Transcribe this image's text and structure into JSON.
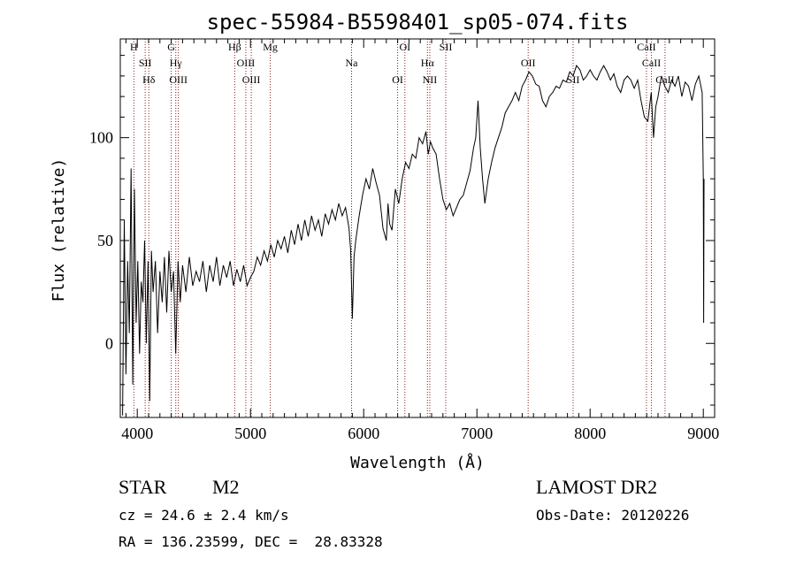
{
  "chart_data": {
    "type": "line",
    "title": "spec-55984-B5598401_sp05-074.fits",
    "xlabel": "Wavelength (Å)",
    "ylabel": "Flux (relative)",
    "xlim": [
      3850,
      9100
    ],
    "ylim": [
      -36,
      148
    ],
    "xticks": [
      4000,
      5000,
      6000,
      7000,
      8000,
      9000
    ],
    "yticks": [
      0,
      50,
      100
    ],
    "grid": false,
    "line_color": "#000000",
    "marker_color": "#8b1a1a",
    "series": [
      {
        "x": [
          3870,
          3885,
          3900,
          3915,
          3930,
          3945,
          3960,
          3975,
          3990,
          4005,
          4020,
          4035,
          4050,
          4065,
          4080,
          4095,
          4110,
          4125,
          4140,
          4160,
          4180,
          4200,
          4220,
          4240,
          4260,
          4280,
          4300,
          4320,
          4340,
          4360,
          4380,
          4400,
          4430,
          4460,
          4490,
          4520,
          4550,
          4580,
          4610,
          4640,
          4670,
          4700,
          4730,
          4760,
          4790,
          4820,
          4850,
          4880,
          4910,
          4940,
          4970,
          5000,
          5030,
          5060,
          5090,
          5120,
          5150,
          5180,
          5210,
          5240,
          5270,
          5300,
          5330,
          5360,
          5390,
          5420,
          5450,
          5480,
          5510,
          5540,
          5570,
          5600,
          5630,
          5660,
          5690,
          5720,
          5750,
          5780,
          5810,
          5840,
          5870,
          5885,
          5900,
          5915,
          5930,
          5960,
          5990,
          6020,
          6050,
          6080,
          6110,
          6140,
          6170,
          6200,
          6215,
          6230,
          6250,
          6280,
          6310,
          6340,
          6370,
          6400,
          6430,
          6460,
          6490,
          6520,
          6550,
          6570,
          6590,
          6610,
          6640,
          6670,
          6700,
          6730,
          6760,
          6790,
          6820,
          6850,
          6880,
          6910,
          6940,
          6970,
          6990,
          7010,
          7030,
          7050,
          7070,
          7100,
          7130,
          7160,
          7190,
          7220,
          7250,
          7280,
          7310,
          7340,
          7370,
          7400,
          7430,
          7460,
          7490,
          7520,
          7550,
          7580,
          7610,
          7640,
          7670,
          7700,
          7730,
          7760,
          7790,
          7820,
          7850,
          7880,
          7910,
          7940,
          7970,
          8000,
          8030,
          8060,
          8090,
          8120,
          8150,
          8180,
          8210,
          8240,
          8270,
          8300,
          8330,
          8360,
          8390,
          8420,
          8450,
          8480,
          8510,
          8540,
          8560,
          8580,
          8600,
          8630,
          8660,
          8690,
          8720,
          8750,
          8780,
          8810,
          8840,
          8870,
          8900,
          8930,
          8960,
          8990,
          9000,
          9003,
          9006
        ],
        "y": [
          -35,
          60,
          -15,
          40,
          5,
          85,
          -20,
          75,
          10,
          40,
          -5,
          30,
          20,
          50,
          0,
          40,
          -28,
          45,
          25,
          40,
          5,
          35,
          20,
          42,
          15,
          45,
          25,
          35,
          -5,
          40,
          20,
          38,
          25,
          42,
          28,
          35,
          30,
          40,
          25,
          38,
          30,
          42,
          28,
          38,
          32,
          40,
          28,
          36,
          30,
          38,
          28,
          32,
          35,
          42,
          38,
          45,
          40,
          48,
          42,
          50,
          46,
          52,
          44,
          55,
          48,
          58,
          50,
          60,
          52,
          62,
          55,
          60,
          52,
          63,
          58,
          65,
          60,
          68,
          62,
          66,
          56,
          45,
          12,
          42,
          50,
          62,
          72,
          80,
          75,
          85,
          78,
          72,
          56,
          50,
          68,
          58,
          55,
          75,
          68,
          80,
          88,
          85,
          92,
          90,
          100,
          97,
          103,
          92,
          98,
          95,
          92,
          80,
          70,
          65,
          68,
          62,
          66,
          70,
          72,
          78,
          84,
          95,
          100,
          118,
          95,
          80,
          68,
          80,
          88,
          95,
          100,
          105,
          112,
          115,
          118,
          122,
          118,
          125,
          128,
          132,
          130,
          126,
          125,
          118,
          115,
          120,
          122,
          125,
          124,
          128,
          127,
          132,
          130,
          135,
          133,
          128,
          130,
          133,
          130,
          128,
          132,
          135,
          132,
          128,
          131,
          125,
          122,
          128,
          130,
          128,
          124,
          128,
          118,
          110,
          108,
          122,
          100,
          115,
          120,
          130,
          125,
          122,
          128,
          125,
          130,
          120,
          127,
          125,
          118,
          126,
          130,
          122,
          80,
          10,
          80
        ]
      }
    ],
    "line_markers": [
      {
        "x": 3970,
        "label": "H"
      },
      {
        "x": 4070,
        "label": "SII"
      },
      {
        "x": 4102,
        "label": "Hδ"
      },
      {
        "x": 4300,
        "label": "G"
      },
      {
        "x": 4340,
        "label": "Hγ"
      },
      {
        "x": 4363,
        "label": "OIII"
      },
      {
        "x": 4861,
        "label": "Hβ"
      },
      {
        "x": 4959,
        "label": "OIII"
      },
      {
        "x": 5007,
        "label": "OIII"
      },
      {
        "x": 5175,
        "label": "Mg"
      },
      {
        "x": 5893,
        "label": "Na"
      },
      {
        "x": 6300,
        "label": "OI"
      },
      {
        "x": 6364,
        "label": "OI"
      },
      {
        "x": 6563,
        "label": "Hα"
      },
      {
        "x": 6584,
        "label": "NII"
      },
      {
        "x": 6725,
        "label": "SII"
      },
      {
        "x": 7453,
        "label": "OII"
      },
      {
        "x": 7850,
        "label": "SII"
      },
      {
        "x": 8498,
        "label": "CaII"
      },
      {
        "x": 8542,
        "label": "CaII"
      },
      {
        "x": 8662,
        "label": "CaII"
      }
    ]
  },
  "info": {
    "object_type": "STAR",
    "subclass": "M2",
    "redshift": "cz = 24.6 ± 2.4 km/s",
    "coords": "RA = 136.23599, DEC =  28.83328",
    "survey": "LAMOST DR2",
    "obs_date": "Obs-Date: 20120226"
  }
}
